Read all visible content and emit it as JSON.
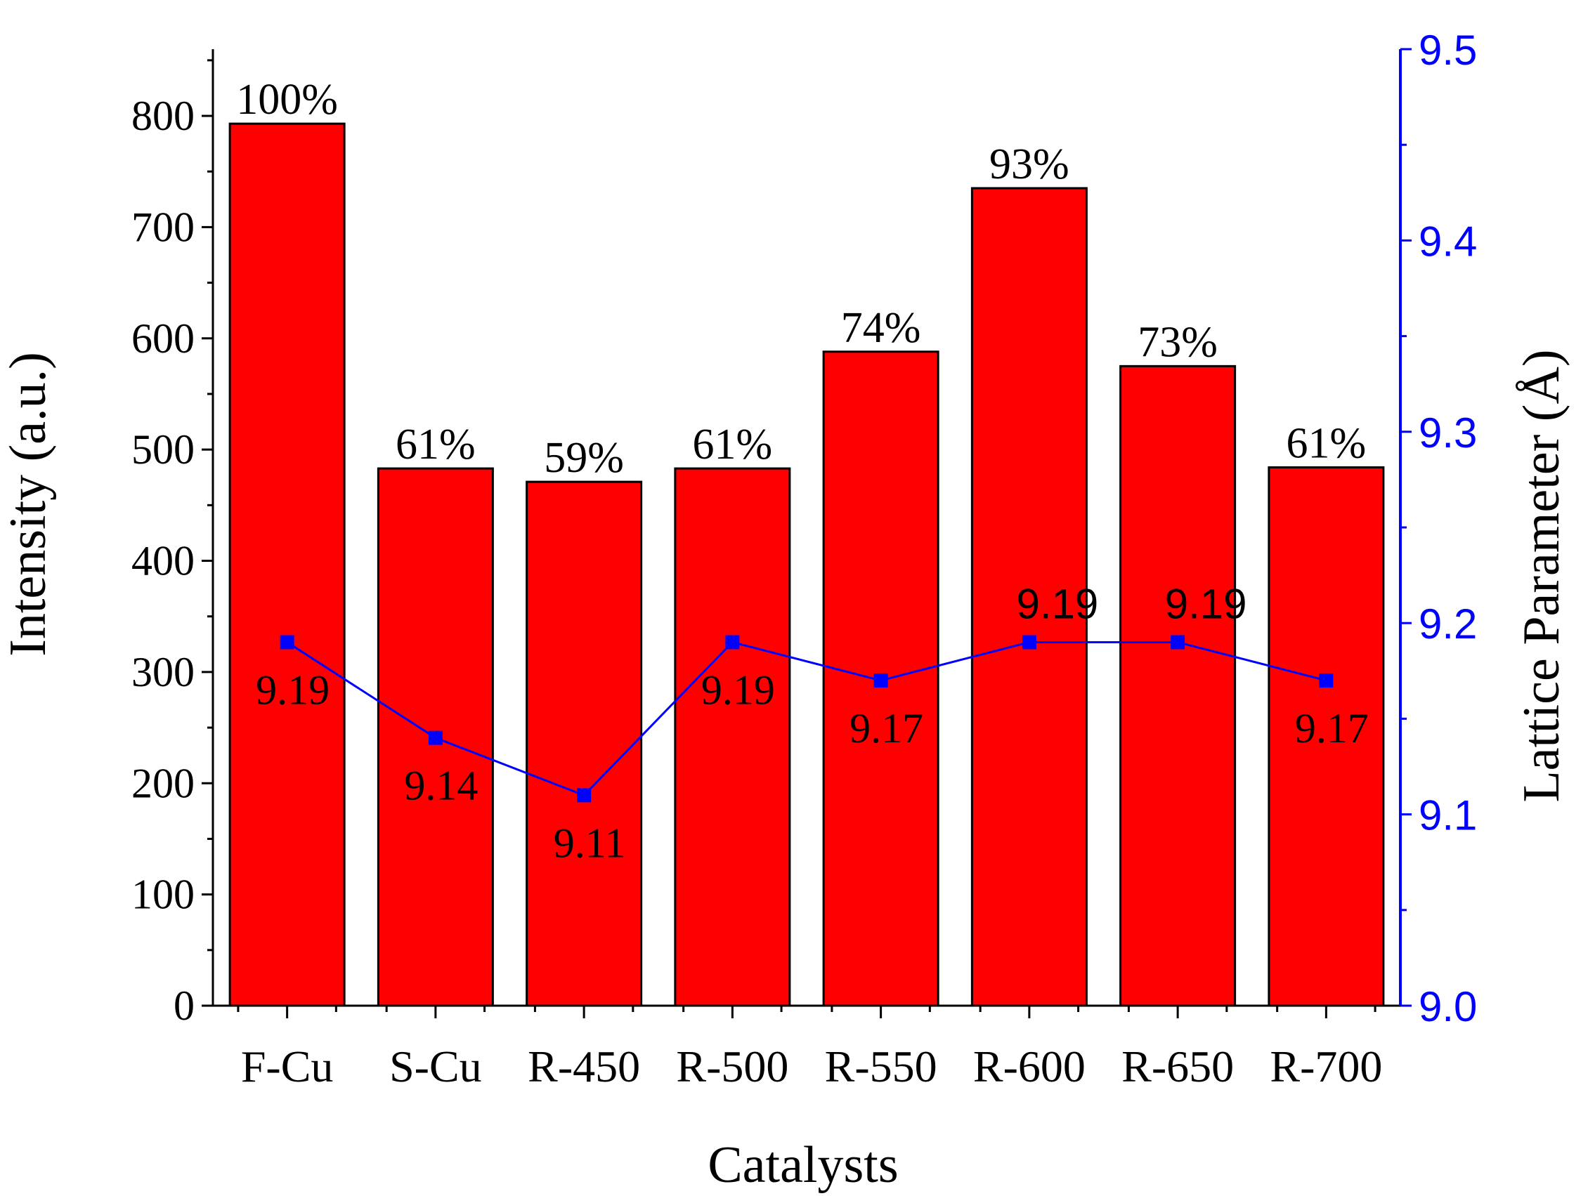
{
  "chart_data": {
    "type": "bar",
    "categories": [
      "F-Cu",
      "S-Cu",
      "R-450",
      "R-500",
      "R-550",
      "R-600",
      "R-650",
      "R-700"
    ],
    "xlabel": "Catalysts",
    "ylabel": "Intensity (a.u.)",
    "y2label": "Lattice Parameter (Å)",
    "ylim": [
      0,
      860
    ],
    "y2lim": [
      9.0,
      9.5
    ],
    "yticks": [
      "0",
      "100",
      "200",
      "300",
      "400",
      "500",
      "600",
      "700",
      "800"
    ],
    "y2ticks": [
      "9.0",
      "9.1",
      "9.2",
      "9.3",
      "9.4",
      "9.5"
    ],
    "series": [
      {
        "axis": "left",
        "kind": "bar",
        "color": "#ff0000",
        "values": [
          793,
          483,
          471,
          483,
          588,
          735,
          575,
          484
        ],
        "labels": [
          "100%",
          "61%",
          "59%",
          "61%",
          "74%",
          "93%",
          "73%",
          "61%"
        ]
      },
      {
        "axis": "right",
        "kind": "line",
        "color": "#0000ff",
        "marker": "square",
        "values": [
          9.19,
          9.14,
          9.11,
          9.19,
          9.17,
          9.19,
          9.19,
          9.17
        ],
        "labels": [
          "9.19",
          "9.14",
          "9.11",
          "9.19",
          "9.17",
          "9.19",
          "9.19",
          "9.17"
        ]
      }
    ],
    "grid": false,
    "legend": "none"
  }
}
